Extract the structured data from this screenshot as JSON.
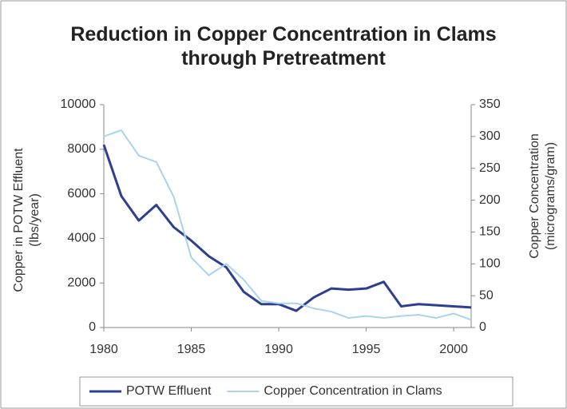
{
  "chart_data": {
    "type": "line",
    "title": "Reduction in Copper Concentration in Clams through Pretreatment",
    "ylabel": [
      "Copper in POTW Effluent",
      "(lbs/year)"
    ],
    "y2label": [
      "Copper Concentration",
      "(micrograms/gram)"
    ],
    "x": [
      1980,
      1981,
      1982,
      1983,
      1984,
      1985,
      1986,
      1987,
      1988,
      1989,
      1990,
      1991,
      1992,
      1993,
      1994,
      1995,
      1996,
      1997,
      1998,
      1999,
      2000,
      2001
    ],
    "xlim": [
      1980,
      2001
    ],
    "xticks": [
      1980,
      1985,
      1990,
      1995,
      2000
    ],
    "ylim": [
      0,
      10000
    ],
    "yticks": [
      0,
      2000,
      4000,
      6000,
      8000,
      10000
    ],
    "y2lim": [
      0,
      350
    ],
    "y2ticks": [
      0,
      50,
      100,
      150,
      200,
      250,
      300,
      350
    ],
    "legend": "bottom",
    "series": [
      {
        "name": "POTW Effluent",
        "color": "#2e3f8f",
        "values": [
          8200,
          5900,
          4800,
          5500,
          4500,
          3900,
          3200,
          2700,
          1600,
          1050,
          1050,
          750,
          1350,
          1750,
          1700,
          1750,
          2050,
          950,
          1050,
          1000,
          950,
          900
        ]
      },
      {
        "name": "Copper Concentration in Clams",
        "color": "#a9d3ee",
        "axis": "y2",
        "values": [
          300,
          310,
          270,
          260,
          205,
          110,
          82,
          100,
          75,
          42,
          38,
          38,
          30,
          25,
          15,
          18,
          15,
          18,
          20,
          15,
          22,
          12
        ]
      }
    ]
  }
}
